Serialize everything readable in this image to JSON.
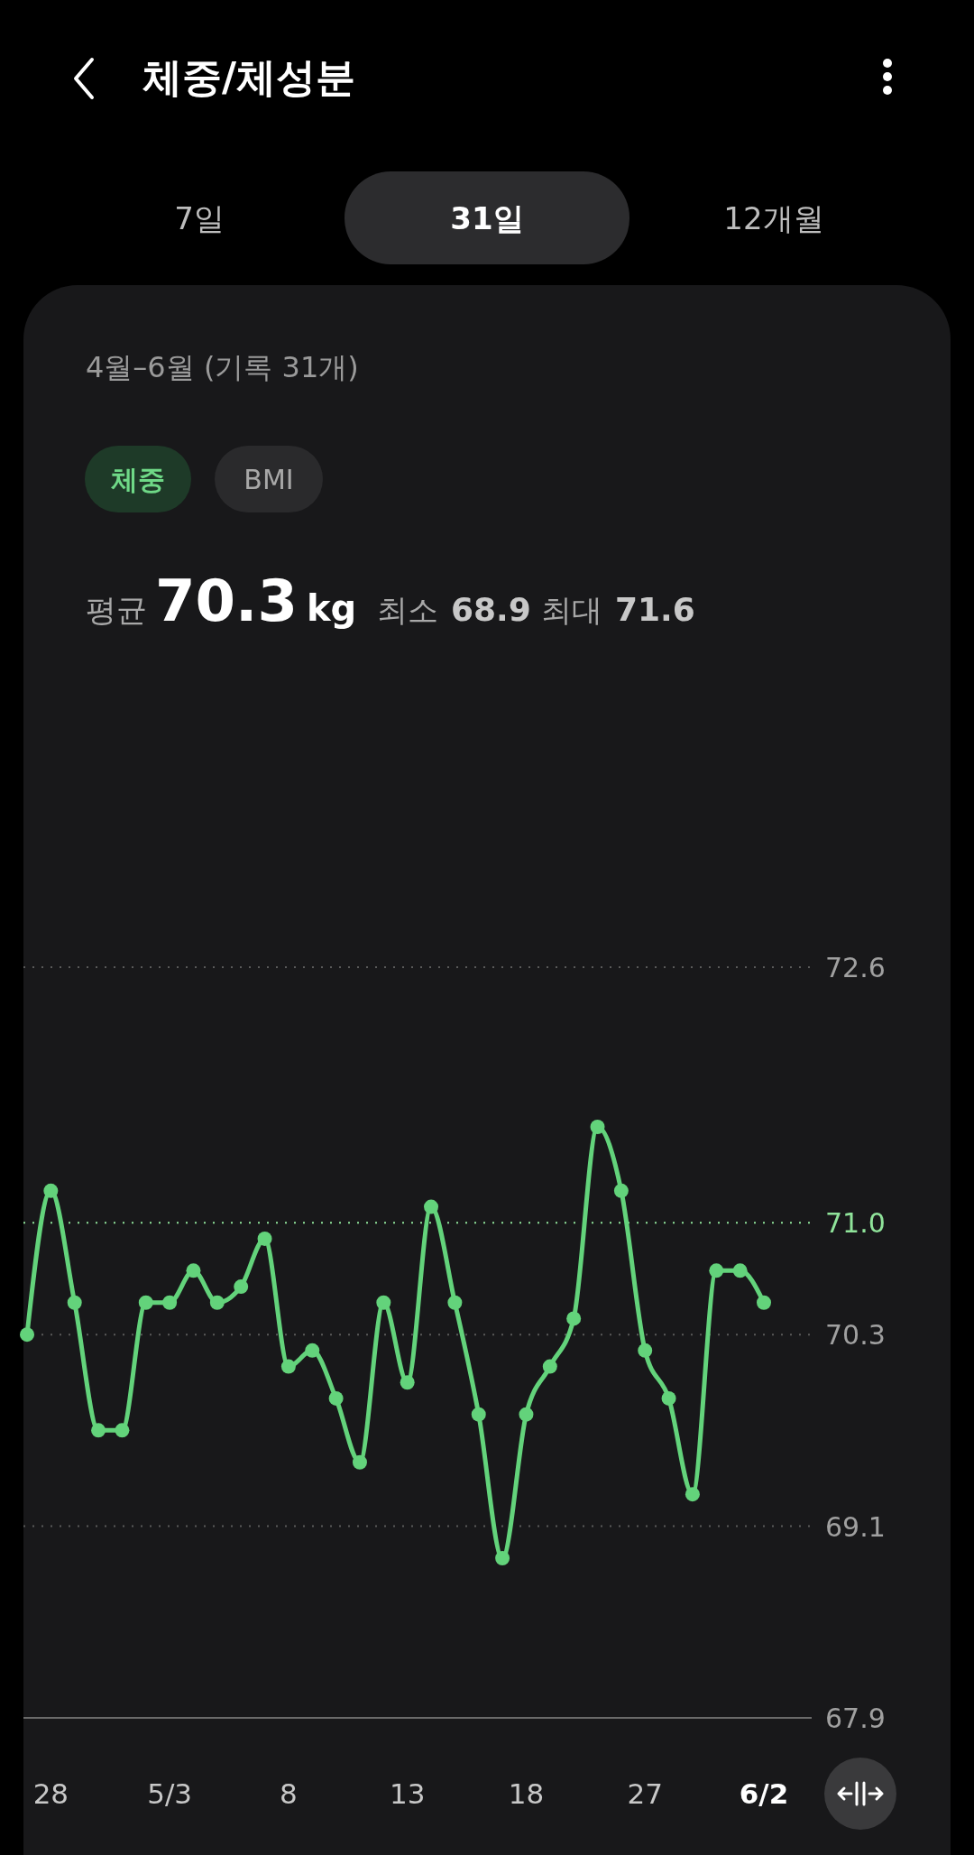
{
  "chart_data": {
    "type": "line",
    "title": "체중/체성분",
    "subtitle": "4월–6월 (기록 31개)",
    "annotations": [
      "7일",
      "31일",
      "12개월",
      "체중",
      "BMI",
      "평균",
      "70.3",
      "kg",
      "최소",
      "68.9",
      "최대",
      "71.6"
    ],
    "categories": [
      null,
      "28",
      null,
      null,
      null,
      null,
      "5/3",
      null,
      null,
      null,
      null,
      "8",
      null,
      null,
      null,
      null,
      "13",
      null,
      null,
      null,
      null,
      "18",
      null,
      null,
      null,
      null,
      "27",
      null,
      null,
      null,
      null,
      "6/2"
    ],
    "series": [
      {
        "color": "#63d37b",
        "values": [
          70.3,
          71.2,
          70.5,
          69.7,
          69.7,
          70.5,
          70.5,
          70.7,
          70.5,
          70.6,
          70.9,
          70.1,
          70.2,
          69.9,
          69.5,
          70.5,
          70.0,
          71.1,
          70.5,
          69.8,
          68.9,
          69.8,
          70.1,
          70.4,
          71.6,
          71.2,
          70.2,
          69.9,
          69.3,
          70.7,
          70.7,
          70.5
        ]
      }
    ],
    "ylim": [
      67.9,
      72.6
    ],
    "yticks": [
      67.9,
      69.1,
      70.3,
      72.6
    ],
    "grid": "y",
    "marker": "circle",
    "line_style": "solid",
    "ref_lines": [
      {
        "axis": "y",
        "value": 71.0,
        "label": "71.0",
        "color": "#8fe39a",
        "line_style": "dotted"
      }
    ]
  }
}
